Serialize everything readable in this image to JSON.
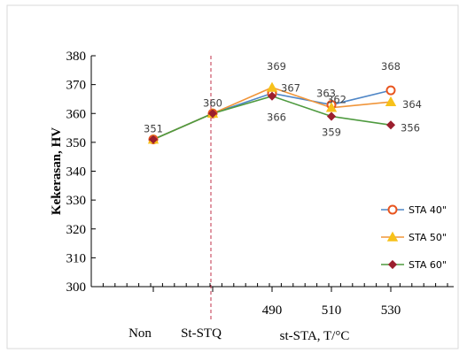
{
  "chart_data": {
    "type": "line",
    "title": "",
    "xlabel": "st-STA, T/°C",
    "ylabel": "Kekerasan, HV",
    "categories": [
      "Non",
      "St-STQ",
      "490",
      "510",
      "530"
    ],
    "ylim": [
      300,
      380
    ],
    "yticks": [
      300,
      310,
      320,
      330,
      340,
      350,
      360,
      370,
      380
    ],
    "grid": false,
    "legend_position": "bottom-right",
    "reference_line": {
      "between": [
        "Non",
        "St-STQ"
      ],
      "color": "#c0304a",
      "style": "dashed"
    },
    "series": [
      {
        "name": "STA 40\"",
        "color": "#4f86c6",
        "marker": "circle",
        "marker_color": "#e8551f",
        "values": [
          351,
          360,
          367,
          363,
          368
        ],
        "labels": [
          "351",
          "360",
          "367",
          "363",
          "368"
        ]
      },
      {
        "name": "STA 50\"",
        "color": "#f0953a",
        "marker": "triangle",
        "marker_color": "#f7c11a",
        "values": [
          351,
          360,
          369,
          362,
          364
        ],
        "labels": [
          "",
          "",
          "369",
          "362",
          "364"
        ]
      },
      {
        "name": "STA 60\"",
        "color": "#4e9a3f",
        "marker": "diamond",
        "marker_color": "#9b1f2e",
        "values": [
          351,
          360,
          366,
          359,
          356
        ],
        "labels": [
          "",
          "",
          "366",
          "359",
          "356"
        ]
      }
    ]
  }
}
